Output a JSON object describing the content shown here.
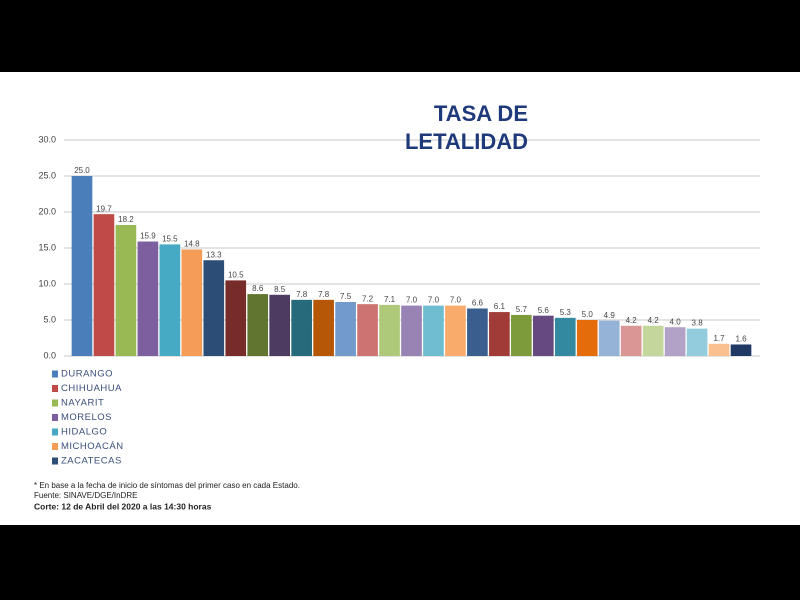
{
  "chart_data": {
    "type": "bar",
    "title": "TASA DE LETALIDAD",
    "categories": [
      "DURANGO",
      "CHIHUAHUA",
      "NAYARIT",
      "MORELOS",
      "HIDALGO",
      "MICHOACÁN",
      "ZACATECAS",
      null,
      null,
      null,
      null,
      null,
      null,
      null,
      null,
      null,
      null,
      null,
      null,
      null,
      null,
      null,
      null,
      null,
      null,
      null,
      null,
      null,
      null,
      null,
      null
    ],
    "values": [
      25.0,
      19.7,
      18.2,
      15.9,
      15.5,
      14.8,
      13.3,
      10.5,
      8.6,
      8.5,
      7.8,
      7.8,
      7.5,
      7.2,
      7.1,
      7.0,
      7.0,
      7.0,
      6.6,
      6.1,
      5.7,
      5.6,
      5.3,
      5.0,
      4.9,
      4.2,
      4.2,
      4.0,
      3.8,
      1.7,
      1.6
    ],
    "value_labels": [
      "25.0",
      "19.7",
      "18.2",
      "15.9",
      "15.5",
      "14.8",
      "13.3",
      "10.5",
      "8.6",
      "8.5",
      "7.8",
      "7.8",
      "7.5",
      "7.2",
      "7.1",
      "7.0",
      "7.0",
      "7.0",
      "6.6",
      "6.1",
      "5.7",
      "5.6",
      "5.3",
      "5.0",
      "4.9",
      "4.2",
      "4.2",
      "4.0",
      "3.8",
      "1.7",
      "1.6"
    ],
    "colors": [
      "#4a7ebb",
      "#be4b48",
      "#98b954",
      "#7d5fa0",
      "#46aac5",
      "#f59d56",
      "#2c4d75",
      "#772c2a",
      "#5f7530",
      "#4d3b62",
      "#276a7c",
      "#b65708",
      "#729aca",
      "#cd7371",
      "#afc97a",
      "#9983b5",
      "#6fbdd1",
      "#f9ab6b",
      "#3a5f8f",
      "#a03b38",
      "#7e9b3c",
      "#66497f",
      "#338aa0",
      "#e46c0a",
      "#95b3d7",
      "#d99694",
      "#c3d69b",
      "#b3a2c7",
      "#93cddd",
      "#fac090",
      "#1f3864"
    ],
    "ylim": [
      0,
      30
    ],
    "yticks": [
      {
        "value": 0,
        "label": "0.0"
      },
      {
        "value": 5,
        "label": "5.0"
      },
      {
        "value": 10,
        "label": "10.0"
      },
      {
        "value": 15,
        "label": "15.0"
      },
      {
        "value": 20,
        "label": "20.0"
      },
      {
        "value": 25,
        "label": "25.0"
      },
      {
        "value": 30,
        "label": "30.0"
      }
    ],
    "grid": true,
    "notes": [
      "* En base a la fecha de inicio de síntomas del primer caso en cada Estado.",
      "Fuente: SINAVE/DGE/InDRE",
      "Corte: 12 de Abril del 2020 a las 14:30 horas"
    ]
  }
}
